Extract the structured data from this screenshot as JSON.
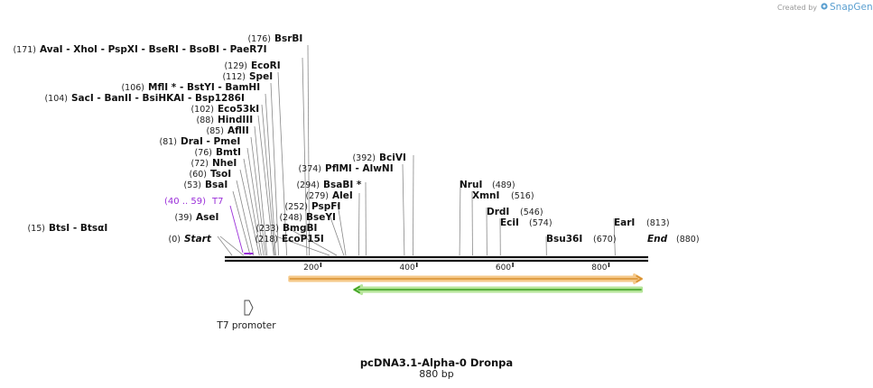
{
  "header": {
    "credit": "Created by",
    "brand": "SnapGene"
  },
  "map": {
    "name": "pcDNA3.1-Alpha-0 Dronpa",
    "length_label": "880 bp",
    "length": 880,
    "ticks": [
      {
        "pos": 200,
        "label": "200"
      },
      {
        "pos": 400,
        "label": "400"
      },
      {
        "pos": 600,
        "label": "600"
      },
      {
        "pos": 800,
        "label": "800"
      }
    ],
    "start_marker": {
      "pos_label": "(0)",
      "name": "Start"
    },
    "end_marker": {
      "pos_label": "(880)",
      "name": "End"
    },
    "sites": [
      {
        "id": "bsti",
        "pos": 15,
        "pos_label": "(15)",
        "text": "BtsI   - BtsαI"
      },
      {
        "id": "asei",
        "pos": 39,
        "pos_label": "(39)",
        "text": "AseI"
      },
      {
        "id": "bsai",
        "pos": 53,
        "pos_label": "(53)",
        "text": "BsaI"
      },
      {
        "id": "tsoi",
        "pos": 60,
        "pos_label": "(60)",
        "text": "TsoI"
      },
      {
        "id": "nhei",
        "pos": 72,
        "pos_label": "(72)",
        "text": "NheI"
      },
      {
        "id": "bmti",
        "pos": 76,
        "pos_label": "(76)",
        "text": "BmtI"
      },
      {
        "id": "drai",
        "pos": 81,
        "pos_label": "(81)",
        "text": "DraI   - PmeI"
      },
      {
        "id": "aflii",
        "pos": 85,
        "pos_label": "(85)",
        "text": "AflII"
      },
      {
        "id": "hindiii",
        "pos": 88,
        "pos_label": "(88)",
        "text": "HindIII"
      },
      {
        "id": "eco53ki",
        "pos": 102,
        "pos_label": "(102)",
        "text": "Eco53kI"
      },
      {
        "id": "saci",
        "pos": 104,
        "pos_label": "(104)",
        "text": "SacI   - BanII   - BsiHKAI   - Bsp1286I"
      },
      {
        "id": "mfli",
        "pos": 106,
        "pos_label": "(106)",
        "text": "MflI *  - BstYI   - BamHI"
      },
      {
        "id": "spei",
        "pos": 112,
        "pos_label": "(112)",
        "text": "SpeI"
      },
      {
        "id": "ecori",
        "pos": 129,
        "pos_label": "(129)",
        "text": "EcoRI"
      },
      {
        "id": "avai",
        "pos": 171,
        "pos_label": "(171)",
        "text": "AvaI   - XhoI   - PspXI   - BseRI   - BsoBI   - PaeR7I"
      },
      {
        "id": "bsrbi",
        "pos": 176,
        "pos_label": "(176)",
        "text": "BsrBI"
      },
      {
        "id": "ecop15i",
        "pos": 218,
        "pos_label": "(218)",
        "text": "EcoP15I"
      },
      {
        "id": "bmgbi",
        "pos": 233,
        "pos_label": "(233)",
        "text": "BmgBI"
      },
      {
        "id": "bseyi",
        "pos": 248,
        "pos_label": "(248)",
        "text": "BseYI"
      },
      {
        "id": "pspfi",
        "pos": 252,
        "pos_label": "(252)",
        "text": "PspFI"
      },
      {
        "id": "alei",
        "pos": 279,
        "pos_label": "(279)",
        "text": "AleI"
      },
      {
        "id": "bsabi",
        "pos": 294,
        "pos_label": "(294)",
        "text": "BsaBI *"
      },
      {
        "id": "pflmi",
        "pos": 374,
        "pos_label": "(374)",
        "text": "PflMI   - AlwNI"
      },
      {
        "id": "bcivi",
        "pos": 392,
        "pos_label": "(392)",
        "text": "BciVI"
      },
      {
        "id": "nrui",
        "pos": 489,
        "pos_label": "(489)",
        "text": "NruI"
      },
      {
        "id": "xmni",
        "pos": 516,
        "pos_label": "(516)",
        "text": "XmnI"
      },
      {
        "id": "drdi",
        "pos": 546,
        "pos_label": "(546)",
        "text": "DrdI"
      },
      {
        "id": "ecii",
        "pos": 574,
        "pos_label": "(574)",
        "text": "EciI"
      },
      {
        "id": "bsu36i",
        "pos": 670,
        "pos_label": "(670)",
        "text": "Bsu36I"
      },
      {
        "id": "eari",
        "pos": 813,
        "pos_label": "(813)",
        "text": "EarI"
      }
    ],
    "primer": {
      "name": "T7",
      "range_label": "(40 .. 59)",
      "start": 40,
      "end": 59,
      "color": "#9b30d9"
    },
    "features": [
      {
        "id": "orange-feature",
        "start": 135,
        "end": 868,
        "direction": "forward",
        "fill": "#f5c98a",
        "stroke": "#d89030"
      },
      {
        "id": "green-feature",
        "start": 270,
        "end": 868,
        "direction": "reverse",
        "fill": "#b6e59a",
        "stroke": "#3aa020"
      }
    ],
    "promoter": {
      "label": "T7 promoter",
      "pos": 40
    }
  }
}
